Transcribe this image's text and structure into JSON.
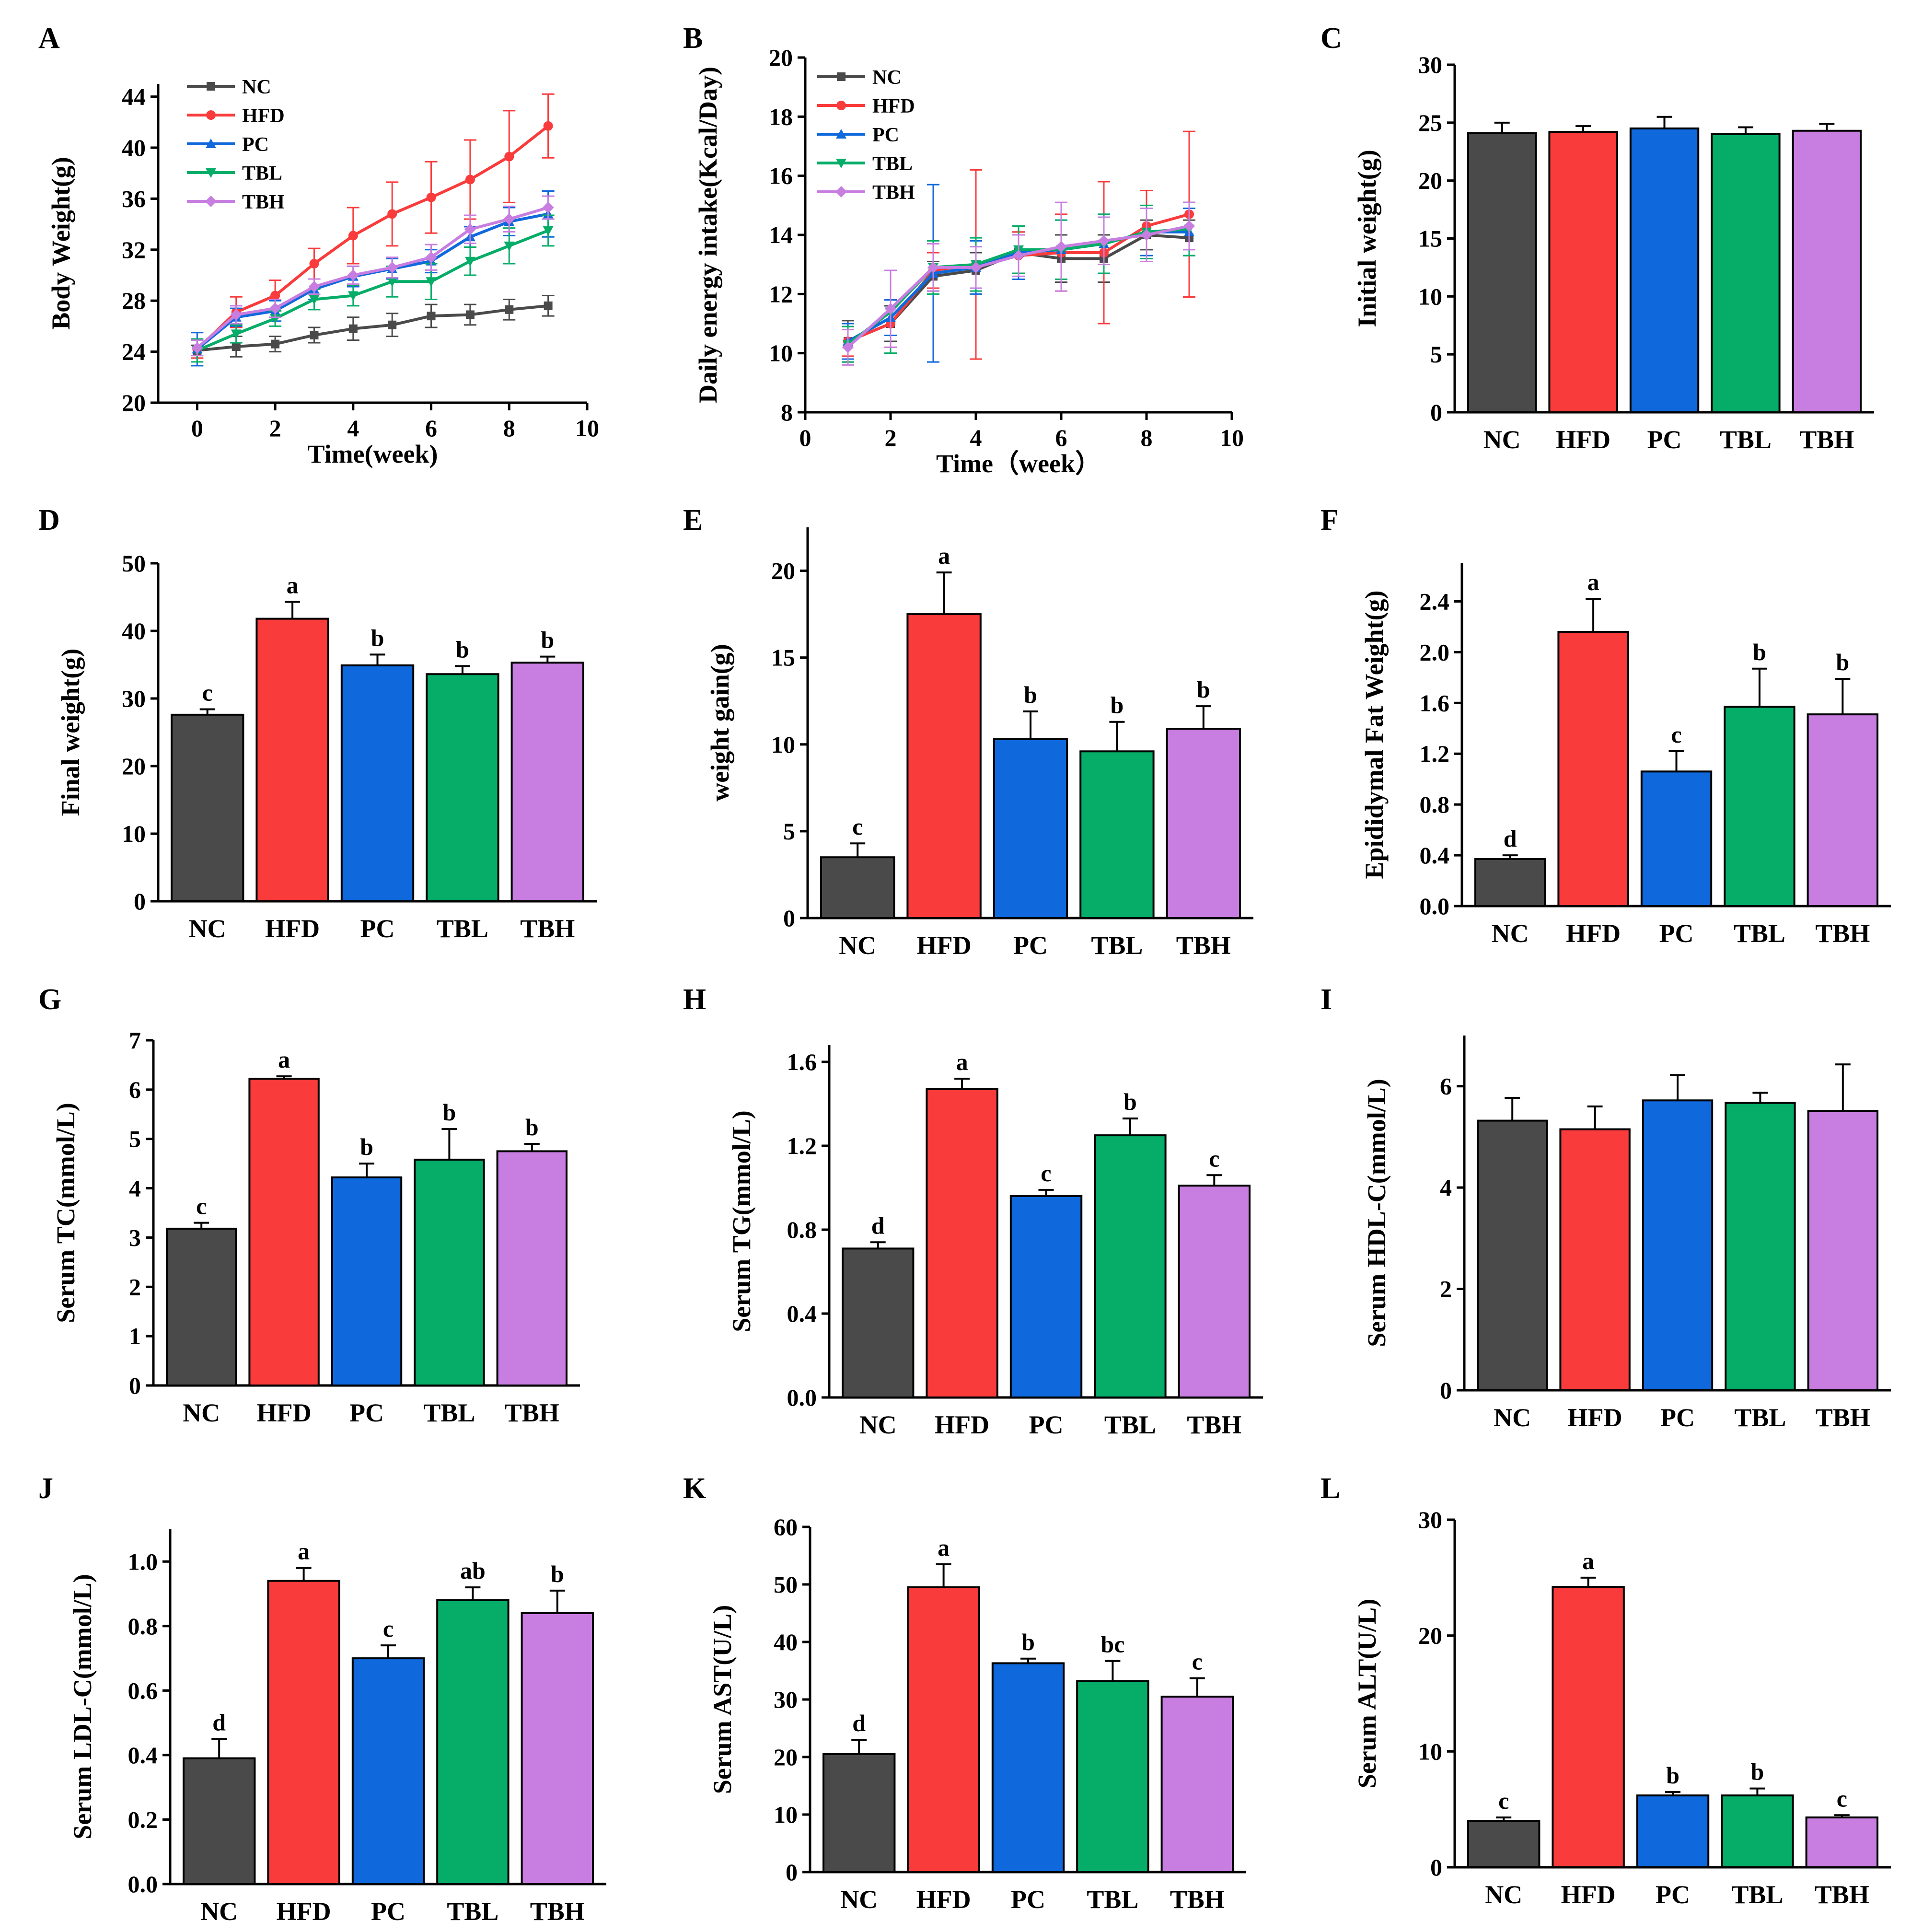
{
  "colors": {
    "NC": "#4a4a4a",
    "HFD": "#f93b3b",
    "PC": "#0f69dc",
    "TBL": "#05ad68",
    "TBH": "#c77ee0"
  },
  "chart_data": [
    {
      "panel": "A",
      "type": "line",
      "xlabel": "Time(week)",
      "ylabel": "Body Weight(g)",
      "xlim": [
        -1,
        10
      ],
      "ylim": [
        20,
        45
      ],
      "xticks": [
        0,
        2,
        4,
        6,
        8,
        10
      ],
      "yticks": [
        20,
        24,
        28,
        32,
        36,
        40,
        44
      ],
      "x": [
        0,
        1,
        2,
        3,
        4,
        5,
        6,
        7,
        8,
        9
      ],
      "legend": [
        "NC",
        "HFD",
        "PC",
        "TBL",
        "TBH"
      ],
      "series": [
        {
          "name": "NC",
          "marker": "square",
          "values": [
            24.1,
            24.4,
            24.6,
            25.3,
            25.8,
            26.1,
            26.8,
            26.9,
            27.3,
            27.6
          ],
          "errors": [
            0.4,
            0.8,
            0.6,
            0.6,
            0.9,
            0.9,
            0.9,
            0.8,
            0.8,
            0.8
          ]
        },
        {
          "name": "HFD",
          "marker": "circle",
          "values": [
            24.2,
            27.1,
            28.4,
            30.9,
            33.1,
            34.8,
            36.1,
            37.5,
            39.3,
            41.7
          ],
          "errors": [
            0.7,
            1.2,
            1.2,
            1.2,
            2.2,
            2.5,
            2.8,
            3.1,
            3.6,
            2.5
          ]
        },
        {
          "name": "PC",
          "marker": "triangle-up",
          "values": [
            24.2,
            26.7,
            27.2,
            28.9,
            29.9,
            30.5,
            31.1,
            33.0,
            34.2,
            34.8
          ],
          "errors": [
            1.3,
            0.7,
            0.8,
            0.8,
            0.8,
            0.8,
            0.9,
            0.8,
            1.1,
            1.8
          ]
        },
        {
          "name": "TBL",
          "marker": "triangle-down",
          "values": [
            24.1,
            25.4,
            26.6,
            28.1,
            28.4,
            29.5,
            29.5,
            31.1,
            32.3,
            33.5
          ],
          "errors": [
            0.9,
            0.7,
            0.6,
            0.8,
            0.8,
            1.2,
            1.4,
            1.1,
            1.4,
            1.2
          ]
        },
        {
          "name": "TBH",
          "marker": "diamond",
          "values": [
            24.3,
            26.9,
            27.4,
            29.1,
            30.0,
            30.6,
            31.4,
            33.6,
            34.4,
            35.3
          ],
          "errors": [
            0.6,
            0.7,
            0.7,
            0.6,
            0.7,
            0.8,
            1.0,
            1.1,
            1.0,
            0.9
          ]
        }
      ]
    },
    {
      "panel": "B",
      "type": "line",
      "xlabel": "Time（week）",
      "ylabel": "Daily energy intake(Kcal/Day)",
      "xlim": [
        0,
        10
      ],
      "ylim": [
        8,
        20
      ],
      "xticks": [
        0,
        2,
        4,
        6,
        8,
        10
      ],
      "yticks": [
        8,
        10,
        12,
        14,
        16,
        18,
        20
      ],
      "x": [
        1,
        2,
        3,
        4,
        5,
        6,
        7,
        8,
        9
      ],
      "legend": [
        "NC",
        "HFD",
        "PC",
        "TBL",
        "TBH"
      ],
      "series": [
        {
          "name": "NC",
          "marker": "square",
          "values": [
            10.4,
            11.0,
            12.6,
            12.8,
            13.4,
            13.2,
            13.2,
            14.0,
            13.9
          ],
          "errors": [
            0.7,
            0.6,
            0.5,
            0.6,
            0.7,
            0.8,
            0.8,
            0.5,
            0.6
          ]
        },
        {
          "name": "HFD",
          "marker": "circle",
          "values": [
            10.4,
            11.0,
            12.8,
            13.0,
            13.3,
            13.4,
            13.4,
            14.3,
            14.7
          ],
          "errors": [
            0.5,
            0.8,
            0.6,
            3.2,
            0.8,
            1.3,
            2.4,
            1.2,
            2.8
          ]
        },
        {
          "name": "PC",
          "marker": "triangle-up",
          "values": [
            10.4,
            11.2,
            12.7,
            12.9,
            13.4,
            13.5,
            13.7,
            14.1,
            14.1
          ],
          "errors": [
            0.6,
            0.6,
            3.0,
            0.9,
            0.9,
            1.0,
            1.0,
            0.8,
            0.8
          ]
        },
        {
          "name": "TBL",
          "marker": "triangle-down",
          "values": [
            10.3,
            11.4,
            12.9,
            13.0,
            13.5,
            13.5,
            13.7,
            14.1,
            14.2
          ],
          "errors": [
            0.6,
            1.4,
            0.9,
            0.9,
            0.8,
            1.0,
            1.0,
            0.9,
            0.9
          ]
        },
        {
          "name": "TBH",
          "marker": "diamond",
          "values": [
            10.2,
            11.5,
            12.9,
            12.9,
            13.3,
            13.6,
            13.8,
            14.0,
            14.3
          ],
          "errors": [
            0.6,
            1.3,
            0.8,
            0.7,
            0.7,
            1.5,
            0.8,
            0.9,
            0.8
          ]
        }
      ]
    },
    {
      "panel": "C",
      "type": "bar",
      "ylabel": "Initial weight(g)",
      "categories": [
        "NC",
        "HFD",
        "PC",
        "TBL",
        "TBH"
      ],
      "values": [
        24.1,
        24.2,
        24.5,
        24.0,
        24.3
      ],
      "errors": [
        0.9,
        0.5,
        1.0,
        0.6,
        0.6
      ],
      "letters": [
        "",
        "",
        "",
        "",
        ""
      ],
      "ylim": [
        0,
        30
      ],
      "yticks": [
        0,
        5,
        10,
        15,
        20,
        25,
        30
      ]
    },
    {
      "panel": "D",
      "type": "bar",
      "ylabel": "Final weight(g)",
      "categories": [
        "NC",
        "HFD",
        "PC",
        "TBL",
        "TBH"
      ],
      "values": [
        27.6,
        41.8,
        34.9,
        33.6,
        35.3
      ],
      "errors": [
        0.8,
        2.5,
        1.6,
        1.2,
        0.9
      ],
      "letters": [
        "c",
        "a",
        "b",
        "b",
        "b"
      ],
      "ylim": [
        0,
        50
      ],
      "yticks": [
        0,
        10,
        20,
        30,
        40,
        50
      ]
    },
    {
      "panel": "E",
      "type": "bar",
      "ylabel": "weight gain(g)",
      "categories": [
        "NC",
        "HFD",
        "PC",
        "TBL",
        "TBH"
      ],
      "values": [
        3.5,
        17.5,
        10.3,
        9.6,
        10.9
      ],
      "errors": [
        0.8,
        2.4,
        1.6,
        1.7,
        1.3
      ],
      "letters": [
        "c",
        "a",
        "b",
        "b",
        "b"
      ],
      "ylim": [
        0,
        22.5
      ],
      "yticks": [
        0,
        5,
        10,
        15,
        20
      ]
    },
    {
      "panel": "F",
      "type": "bar",
      "ylabel": "Epididymal Fat Weight(g)",
      "categories": [
        "NC",
        "HFD",
        "PC",
        "TBL",
        "TBH"
      ],
      "values": [
        0.37,
        2.16,
        1.06,
        1.57,
        1.51
      ],
      "errors": [
        0.03,
        0.26,
        0.16,
        0.3,
        0.28
      ],
      "letters": [
        "d",
        "a",
        "c",
        "b",
        "b"
      ],
      "ylim": [
        0,
        2.7
      ],
      "yticks": [
        0.0,
        0.4,
        0.8,
        1.2,
        1.6,
        2.0,
        2.4
      ],
      "tick_decimals": 1
    },
    {
      "panel": "G",
      "type": "bar",
      "ylabel": "Serum TC(mmol/L)",
      "categories": [
        "NC",
        "HFD",
        "PC",
        "TBL",
        "TBH"
      ],
      "values": [
        3.18,
        6.22,
        4.22,
        4.58,
        4.75
      ],
      "errors": [
        0.12,
        0.05,
        0.28,
        0.62,
        0.15
      ],
      "letters": [
        "c",
        "a",
        "b",
        "b",
        "b"
      ],
      "ylim": [
        0,
        7
      ],
      "yticks": [
        0,
        1,
        2,
        3,
        4,
        5,
        6,
        7
      ]
    },
    {
      "panel": "H",
      "type": "bar",
      "ylabel": "Serum TG(mmol/L)",
      "categories": [
        "NC",
        "HFD",
        "PC",
        "TBL",
        "TBH"
      ],
      "values": [
        0.71,
        1.47,
        0.96,
        1.25,
        1.01
      ],
      "errors": [
        0.03,
        0.05,
        0.03,
        0.08,
        0.05
      ],
      "letters": [
        "d",
        "a",
        "c",
        "b",
        "c"
      ],
      "ylim": [
        0,
        1.68
      ],
      "yticks": [
        0.0,
        0.4,
        0.8,
        1.2,
        1.6
      ],
      "tick_decimals": 1
    },
    {
      "panel": "I",
      "type": "bar",
      "ylabel": "Serum HDL-C(mmol/L)",
      "categories": [
        "NC",
        "HFD",
        "PC",
        "TBL",
        "TBH"
      ],
      "values": [
        5.32,
        5.15,
        5.72,
        5.67,
        5.51
      ],
      "errors": [
        0.45,
        0.45,
        0.5,
        0.2,
        0.92
      ],
      "letters": [
        "",
        "",
        "",
        "",
        ""
      ],
      "ylim": [
        0,
        7
      ],
      "yticks": [
        0,
        2,
        4,
        6
      ]
    },
    {
      "panel": "J",
      "type": "bar",
      "ylabel": "Serum LDL-C(mmol/L)",
      "categories": [
        "NC",
        "HFD",
        "PC",
        "TBL",
        "TBH"
      ],
      "values": [
        0.39,
        0.94,
        0.7,
        0.88,
        0.84
      ],
      "errors": [
        0.06,
        0.04,
        0.04,
        0.04,
        0.07
      ],
      "letters": [
        "d",
        "a",
        "c",
        "ab",
        "b"
      ],
      "ylim": [
        0,
        1.1
      ],
      "yticks": [
        0.0,
        0.2,
        0.4,
        0.6,
        0.8,
        1.0
      ],
      "tick_decimals": 1
    },
    {
      "panel": "K",
      "type": "bar",
      "ylabel": "Serum AST(U/L)",
      "categories": [
        "NC",
        "HFD",
        "PC",
        "TBL",
        "TBH"
      ],
      "values": [
        20.5,
        49.5,
        36.3,
        33.2,
        30.5
      ],
      "errors": [
        2.5,
        4.0,
        0.8,
        3.5,
        3.2
      ],
      "letters": [
        "d",
        "a",
        "b",
        "bc",
        "c"
      ],
      "ylim": [
        0,
        60
      ],
      "yticks": [
        0,
        10,
        20,
        30,
        40,
        50,
        60
      ]
    },
    {
      "panel": "L",
      "type": "bar",
      "ylabel": "Serum ALT(U/L)",
      "categories": [
        "NC",
        "HFD",
        "PC",
        "TBL",
        "TBH"
      ],
      "values": [
        4.0,
        24.2,
        6.2,
        6.2,
        4.3
      ],
      "errors": [
        0.3,
        0.8,
        0.3,
        0.6,
        0.2
      ],
      "letters": [
        "c",
        "a",
        "b",
        "b",
        "c"
      ],
      "ylim": [
        0,
        30
      ],
      "yticks": [
        0,
        10,
        20,
        30
      ]
    }
  ]
}
